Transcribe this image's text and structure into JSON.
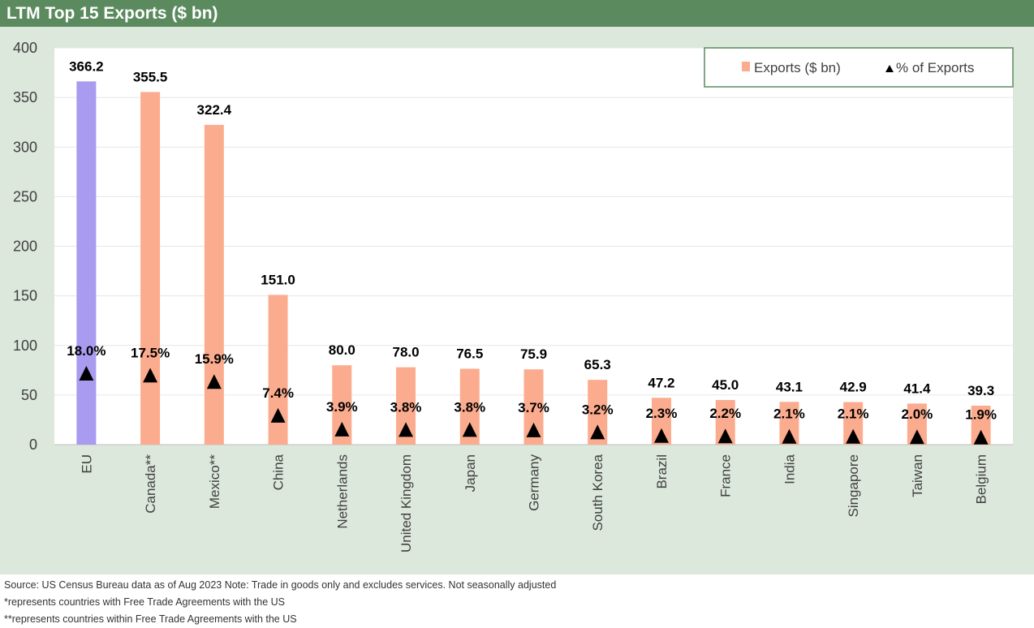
{
  "title": "LTM Top 15 Exports ($ bn)",
  "colors": {
    "title_bg": "#5a8a5e",
    "chart_bg": "#dce8dc",
    "plot_bg": "#ffffff",
    "eu_bar": "#a89bf0",
    "bar": "#fcac8e",
    "marker": "#000000",
    "legend_border": "#5a8a5e"
  },
  "chart_data": {
    "type": "bar",
    "title": "LTM Top 15 Exports ($ bn)",
    "categories": [
      "EU",
      "Canada**",
      "Mexico**",
      "China",
      "Netherlands",
      "United Kingdom",
      "Japan",
      "Germany",
      "South Korea",
      "Brazil",
      "France",
      "India",
      "Singapore",
      "Taiwan",
      "Belgium"
    ],
    "series": [
      {
        "name": "Exports ($ bn)",
        "type": "bar",
        "values": [
          366.2,
          355.5,
          322.4,
          151.0,
          80.0,
          78.0,
          76.5,
          75.9,
          65.3,
          47.2,
          45.0,
          43.1,
          42.9,
          41.4,
          39.3
        ],
        "labels": [
          "366.2",
          "355.5",
          "322.4",
          "151.0",
          "80.0",
          "78.0",
          "76.5",
          "75.9",
          "65.3",
          "47.2",
          "45.0",
          "43.1",
          "42.9",
          "41.4",
          "39.3"
        ]
      },
      {
        "name": "% of Exports",
        "type": "scatter",
        "marker": "triangle",
        "values": [
          18.0,
          17.5,
          15.9,
          7.4,
          3.9,
          3.8,
          3.8,
          3.7,
          3.2,
          2.3,
          2.2,
          2.1,
          2.1,
          2.0,
          1.9
        ],
        "labels": [
          "18.0%",
          "17.5%",
          "15.9%",
          "7.4%",
          "3.9%",
          "3.8%",
          "3.8%",
          "3.7%",
          "3.2%",
          "2.3%",
          "2.2%",
          "2.1%",
          "2.1%",
          "2.0%",
          "1.9%"
        ]
      }
    ],
    "highlight_category": "EU",
    "ylim": [
      0,
      400
    ],
    "yticks": [
      "0",
      "50",
      "100",
      "150",
      "200",
      "250",
      "300",
      "350",
      "400"
    ],
    "ytick_values": [
      0,
      50,
      100,
      150,
      200,
      250,
      300,
      350,
      400
    ],
    "grid": true,
    "legend_position": "top-right",
    "xlabel": "",
    "ylabel": ""
  },
  "footnotes": [
    "Source: US Census Bureau data as of Aug 2023 Note: Trade in goods only and excludes services. Not seasonally adjusted",
    "*represents countries with Free Trade Agreements with the US",
    "**represents countries within Free Trade Agreements with the US"
  ]
}
